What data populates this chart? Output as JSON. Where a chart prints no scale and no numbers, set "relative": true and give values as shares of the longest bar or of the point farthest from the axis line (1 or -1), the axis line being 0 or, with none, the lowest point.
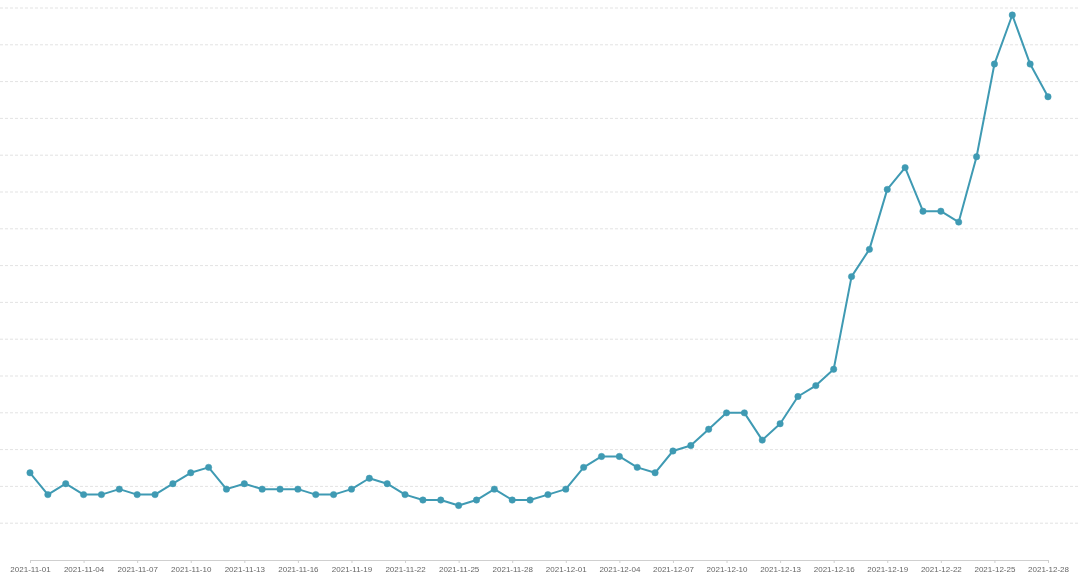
{
  "chart_data": {
    "type": "line",
    "relative": true,
    "grid": "y",
    "marker": "circle",
    "line_style": "solid",
    "x": [
      "2021-11-01",
      "2021-11-02",
      "2021-11-03",
      "2021-11-04",
      "2021-11-05",
      "2021-11-06",
      "2021-11-07",
      "2021-11-08",
      "2021-11-09",
      "2021-11-10",
      "2021-11-11",
      "2021-11-12",
      "2021-11-13",
      "2021-11-14",
      "2021-11-15",
      "2021-11-16",
      "2021-11-17",
      "2021-11-18",
      "2021-11-19",
      "2021-11-20",
      "2021-11-21",
      "2021-11-22",
      "2021-11-23",
      "2021-11-24",
      "2021-11-25",
      "2021-11-26",
      "2021-11-27",
      "2021-11-28",
      "2021-11-29",
      "2021-11-30",
      "2021-12-01",
      "2021-12-02",
      "2021-12-03",
      "2021-12-04",
      "2021-12-05",
      "2021-12-06",
      "2021-12-07",
      "2021-12-08",
      "2021-12-09",
      "2021-12-10",
      "2021-12-11",
      "2021-12-12",
      "2021-12-13",
      "2021-12-14",
      "2021-12-15",
      "2021-12-16",
      "2021-12-17",
      "2021-12-18",
      "2021-12-19",
      "2021-12-20",
      "2021-12-21",
      "2021-12-22",
      "2021-12-23",
      "2021-12-24",
      "2021-12-25",
      "2021-12-26",
      "2021-12-27",
      "2021-12-28"
    ],
    "xlim": [
      "2021-11-01",
      "2021-12-28"
    ],
    "xticks": [
      "2021-11-01",
      "2021-11-04",
      "2021-11-07",
      "2021-11-10",
      "2021-11-13",
      "2021-11-16",
      "2021-11-19",
      "2021-11-22",
      "2021-11-25",
      "2021-11-28",
      "2021-12-01",
      "2021-12-04",
      "2021-12-07",
      "2021-12-10",
      "2021-12-13",
      "2021-12-16",
      "2021-12-19",
      "2021-12-22",
      "2021-12-25",
      "2021-12-28"
    ],
    "series": [
      {
        "color": "#3f9ab3",
        "values": [
          0.16,
          0.12,
          0.14,
          0.12,
          0.12,
          0.13,
          0.12,
          0.12,
          0.14,
          0.16,
          0.17,
          0.13,
          0.14,
          0.13,
          0.13,
          0.13,
          0.12,
          0.12,
          0.13,
          0.15,
          0.14,
          0.12,
          0.11,
          0.11,
          0.1,
          0.11,
          0.13,
          0.11,
          0.11,
          0.12,
          0.13,
          0.17,
          0.19,
          0.19,
          0.17,
          0.16,
          0.2,
          0.21,
          0.24,
          0.27,
          0.27,
          0.22,
          0.25,
          0.3,
          0.32,
          0.35,
          0.52,
          0.57,
          0.68,
          0.72,
          0.64,
          0.64,
          0.62,
          0.74,
          0.91,
          1,
          0.91,
          0.85
        ]
      }
    ]
  }
}
